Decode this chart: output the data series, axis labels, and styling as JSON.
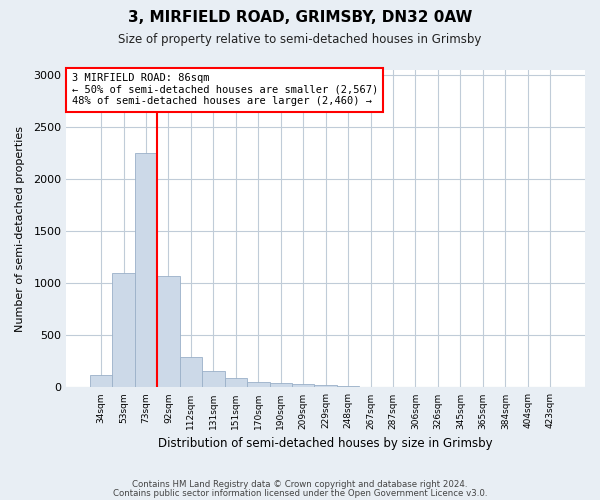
{
  "title": "3, MIRFIELD ROAD, GRIMSBY, DN32 0AW",
  "subtitle": "Size of property relative to semi-detached houses in Grimsby",
  "xlabel": "Distribution of semi-detached houses by size in Grimsby",
  "ylabel": "Number of semi-detached properties",
  "categories": [
    "34sqm",
    "53sqm",
    "73sqm",
    "92sqm",
    "112sqm",
    "131sqm",
    "151sqm",
    "170sqm",
    "190sqm",
    "209sqm",
    "229sqm",
    "248sqm",
    "267sqm",
    "287sqm",
    "306sqm",
    "326sqm",
    "345sqm",
    "365sqm",
    "384sqm",
    "404sqm",
    "423sqm"
  ],
  "values": [
    120,
    1100,
    2250,
    1070,
    290,
    155,
    90,
    50,
    45,
    30,
    20,
    10,
    5,
    5,
    2,
    1,
    0,
    0,
    0,
    0,
    0
  ],
  "bar_color": "#ccd9e8",
  "bar_edge_color": "#9ab0c8",
  "annotation_title": "3 MIRFIELD ROAD: 86sqm",
  "annotation_line1": "← 50% of semi-detached houses are smaller (2,567)",
  "annotation_line2": "48% of semi-detached houses are larger (2,460) →",
  "ylim": [
    0,
    3050
  ],
  "yticks": [
    0,
    500,
    1000,
    1500,
    2000,
    2500,
    3000
  ],
  "footer1": "Contains HM Land Registry data © Crown copyright and database right 2024.",
  "footer2": "Contains public sector information licensed under the Open Government Licence v3.0.",
  "bg_color": "#e8eef4",
  "plot_bg_color": "#ffffff",
  "grid_color": "#c0ccd8"
}
